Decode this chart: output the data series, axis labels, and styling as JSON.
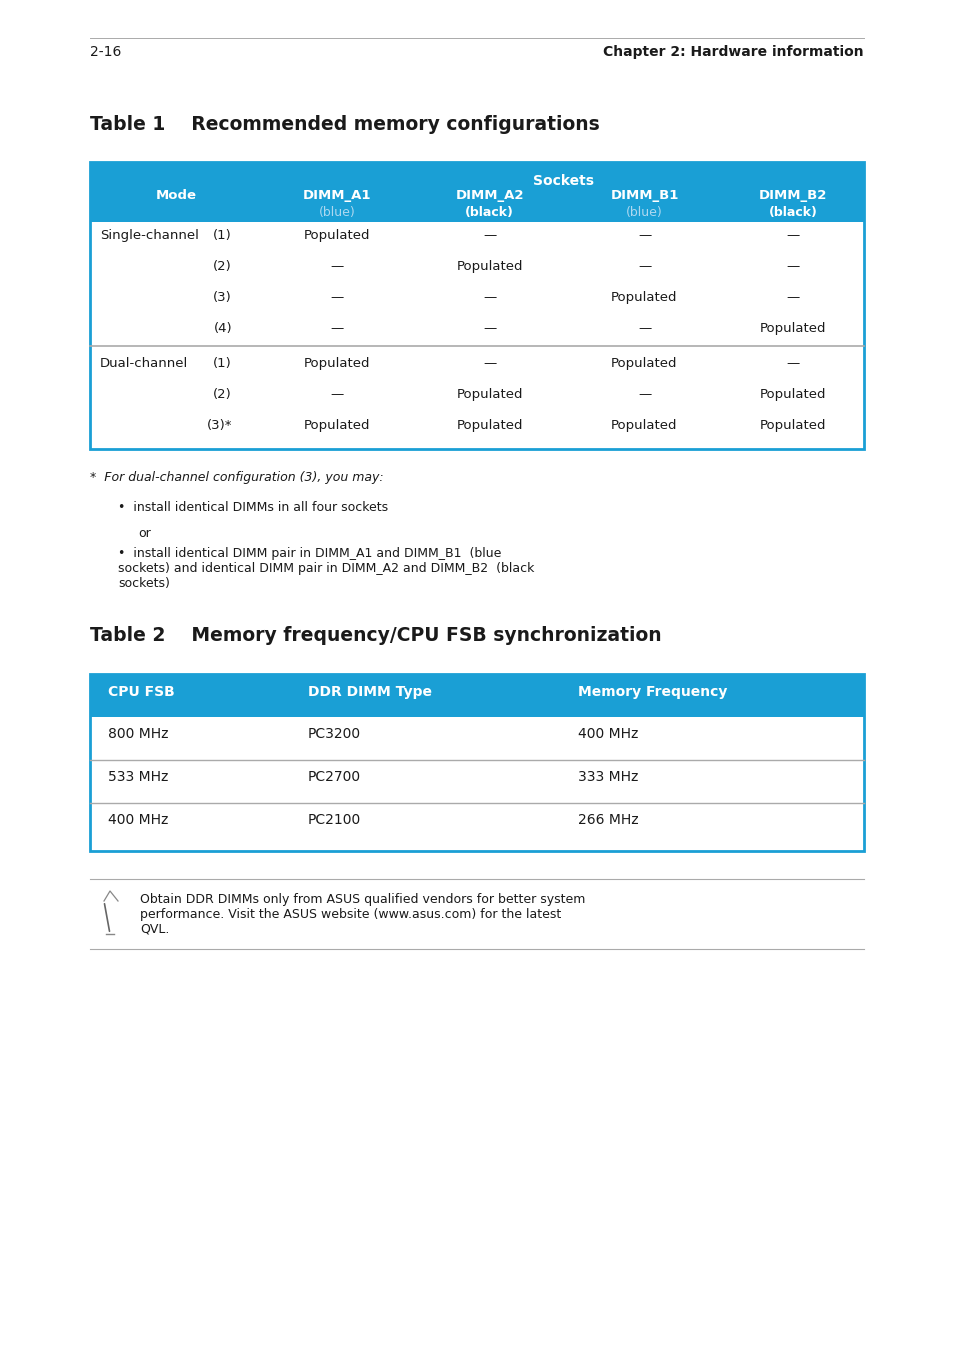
{
  "bg_color": "#ffffff",
  "page_width": 9.54,
  "page_height": 13.51,
  "ml": 0.9,
  "mr": 0.9,
  "blue": "#1a9fd5",
  "white": "#ffffff",
  "black": "#1a1a1a",
  "gray": "#aaaaaa",
  "light_blue_text": "#aaddff",
  "table1_title": "Table 1    Recommended memory configurations",
  "table2_title": "Table 2    Memory frequency/CPU FSB synchronization",
  "table2_headers": [
    "CPU FSB",
    "DDR DIMM Type",
    "Memory Frequency"
  ],
  "table2_data": [
    [
      "800 MHz",
      "PC3200",
      "400 MHz"
    ],
    [
      "533 MHz",
      "PC2700",
      "333 MHz"
    ],
    [
      "400 MHz",
      "PC2100",
      "266 MHz"
    ]
  ],
  "footnote_star": "*  For dual-channel configuration (3), you may:",
  "bullet1": "install identical DIMMs in all four sockets",
  "or_text": "or",
  "bullet2": "install identical DIMM pair in DIMM_A1 and DIMM_B1  (blue\nsockets) and identical DIMM pair in DIMM_A2 and DIMM_B2  (black\nsockets)",
  "note_text": "Obtain DDR DIMMs only from ASUS qualified vendors for better system\nperformance. Visit the ASUS website (www.asus.com) for the latest\nQVL.",
  "footer_left": "2-16",
  "footer_right": "Chapter 2: Hardware information"
}
